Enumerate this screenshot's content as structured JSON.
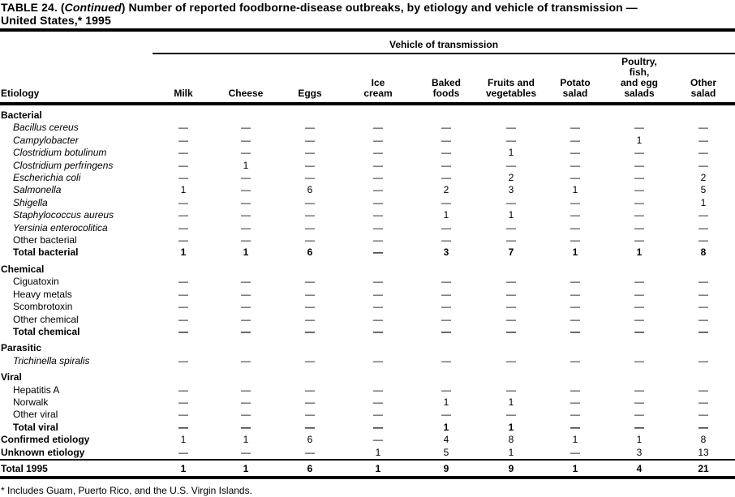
{
  "title": {
    "prefix": "TABLE 24. (",
    "continued": "Continued",
    "rest": ") Number of reported foodborne-disease outbreaks, by etiology and vehicle of transmission —",
    "line2": "United States,* 1995"
  },
  "table": {
    "spanner": "Vehicle of transmission",
    "etiology_header": "Etiology",
    "columns": [
      "Milk",
      "Cheese",
      "Eggs",
      "Ice\ncream",
      "Baked\nfoods",
      "Fruits and\nvegetables",
      "Potato\nsalad",
      "Poultry,\nfish,\nand egg\nsalads",
      "Other\nsalad"
    ],
    "rows": [
      {
        "type": "section",
        "label": "Bacterial",
        "values": null
      },
      {
        "type": "item-italic",
        "label": "Bacillus cereus",
        "values": [
          "—",
          "—",
          "—",
          "—",
          "—",
          "—",
          "—",
          "—",
          "—"
        ]
      },
      {
        "type": "item-italic",
        "label": "Campylobacter",
        "values": [
          "—",
          "—",
          "—",
          "—",
          "—",
          "—",
          "—",
          "1",
          "—"
        ]
      },
      {
        "type": "item-italic",
        "label": "Clostridium botulinum",
        "values": [
          "—",
          "—",
          "—",
          "—",
          "—",
          "1",
          "—",
          "—",
          "—"
        ]
      },
      {
        "type": "item-italic",
        "label": "Clostridium perfringens",
        "values": [
          "—",
          "1",
          "—",
          "—",
          "—",
          "—",
          "—",
          "—",
          "—"
        ]
      },
      {
        "type": "item-italic",
        "label": "Escherichia coli",
        "values": [
          "—",
          "—",
          "—",
          "—",
          "—",
          "2",
          "—",
          "—",
          "2"
        ]
      },
      {
        "type": "item-italic",
        "label": "Salmonella",
        "values": [
          "1",
          "—",
          "6",
          "—",
          "2",
          "3",
          "1",
          "—",
          "5"
        ]
      },
      {
        "type": "item-italic",
        "label": "Shigella",
        "values": [
          "—",
          "—",
          "—",
          "—",
          "—",
          "—",
          "—",
          "—",
          "1"
        ]
      },
      {
        "type": "item-italic",
        "label": "Staphylococcus aureus",
        "values": [
          "—",
          "—",
          "—",
          "—",
          "1",
          "1",
          "—",
          "—",
          "—"
        ]
      },
      {
        "type": "item-italic",
        "label": "Yersinia enterocolitica",
        "values": [
          "—",
          "—",
          "—",
          "—",
          "—",
          "—",
          "—",
          "—",
          "—"
        ]
      },
      {
        "type": "item",
        "label": "Other bacterial",
        "values": [
          "—",
          "—",
          "—",
          "—",
          "—",
          "—",
          "—",
          "—",
          "—"
        ]
      },
      {
        "type": "total",
        "label": "Total bacterial",
        "values": [
          "1",
          "1",
          "6",
          "—",
          "3",
          "7",
          "1",
          "1",
          "8"
        ]
      },
      {
        "type": "section",
        "label": "Chemical",
        "values": null
      },
      {
        "type": "item",
        "label": "Ciguatoxin",
        "values": [
          "—",
          "—",
          "—",
          "—",
          "—",
          "—",
          "—",
          "—",
          "—"
        ]
      },
      {
        "type": "item",
        "label": "Heavy metals",
        "values": [
          "—",
          "—",
          "—",
          "—",
          "—",
          "—",
          "—",
          "—",
          "—"
        ]
      },
      {
        "type": "item",
        "label": "Scombrotoxin",
        "values": [
          "—",
          "—",
          "—",
          "—",
          "—",
          "—",
          "—",
          "—",
          "—"
        ]
      },
      {
        "type": "item",
        "label": "Other chemical",
        "values": [
          "—",
          "—",
          "—",
          "—",
          "—",
          "—",
          "—",
          "—",
          "—"
        ]
      },
      {
        "type": "total",
        "label": "Total chemical",
        "values": [
          "—",
          "—",
          "—",
          "—",
          "—",
          "—",
          "—",
          "—",
          "—"
        ]
      },
      {
        "type": "section",
        "label": "Parasitic",
        "values": null
      },
      {
        "type": "item-italic",
        "label": "Trichinella spiralis",
        "values": [
          "—",
          "—",
          "—",
          "—",
          "—",
          "—",
          "—",
          "—",
          "—"
        ]
      },
      {
        "type": "section",
        "label": "Viral",
        "values": null
      },
      {
        "type": "item",
        "label": "Hepatitis A",
        "values": [
          "—",
          "—",
          "—",
          "—",
          "—",
          "—",
          "—",
          "—",
          "—"
        ]
      },
      {
        "type": "item",
        "label": "Norwalk",
        "values": [
          "—",
          "—",
          "—",
          "—",
          "1",
          "1",
          "—",
          "—",
          "—"
        ]
      },
      {
        "type": "item",
        "label": "Other viral",
        "values": [
          "—",
          "—",
          "—",
          "—",
          "—",
          "—",
          "—",
          "—",
          "—"
        ]
      },
      {
        "type": "total",
        "label": "Total viral",
        "values": [
          "—",
          "—",
          "—",
          "—",
          "1",
          "1",
          "—",
          "—",
          "—"
        ]
      },
      {
        "type": "summary",
        "label": "Confirmed etiology",
        "values": [
          "1",
          "1",
          "6",
          "—",
          "4",
          "8",
          "1",
          "1",
          "8"
        ]
      },
      {
        "type": "summary",
        "label": "Unknown etiology",
        "values": [
          "—",
          "—",
          "—",
          "1",
          "5",
          "1",
          "—",
          "3",
          "13"
        ]
      },
      {
        "type": "grand",
        "label": "Total 1995",
        "values": [
          "1",
          "1",
          "6",
          "1",
          "9",
          "9",
          "1",
          "4",
          "21"
        ]
      }
    ]
  },
  "footnote": "* Includes Guam, Puerto Rico, and the U.S. Virgin Islands."
}
